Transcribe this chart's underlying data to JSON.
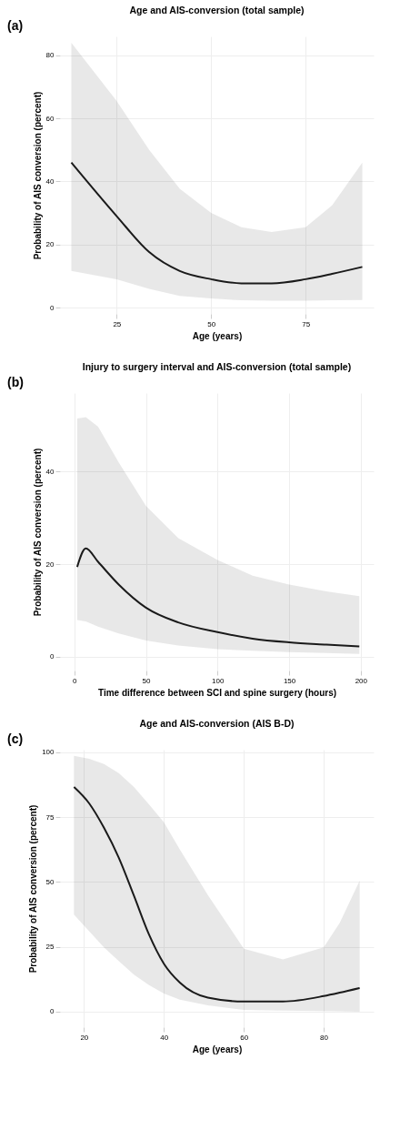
{
  "chart_data": [
    {
      "type": "line",
      "title": "Age and AIS-conversion (total sample)",
      "annotations": [
        "(a)"
      ],
      "xlabel": "Age (years)",
      "ylabel": "Probability of AIS conversion (percent)",
      "xlim": [
        10,
        93
      ],
      "xticks": [
        25,
        50,
        75
      ],
      "ylim": [
        -2,
        86
      ],
      "yticks": [
        0,
        20,
        40,
        60,
        80
      ],
      "grid": true,
      "series": [
        {
          "color": "#1a1a1a",
          "x": [
            13,
            25,
            33.6,
            41.7,
            50,
            58,
            66,
            75,
            82,
            90
          ],
          "values": [
            46,
            29,
            17.6,
            11.6,
            9,
            7.7,
            7.7,
            9,
            10.7,
            12.9
          ],
          "lower": [
            11.6,
            9,
            5.9,
            3.7,
            2.9,
            2.3,
            2.2,
            2.2,
            2.3,
            2.4
          ],
          "upper": [
            84,
            65.5,
            50,
            37.7,
            30,
            25.5,
            24,
            25.5,
            32.4,
            46
          ]
        }
      ]
    },
    {
      "type": "line",
      "title": "Injury to surgery interval and AIS-conversion (total sample)",
      "annotations": [
        "(b)"
      ],
      "xlabel": "Time difference between SCI and spine surgery (hours)",
      "ylabel": "Probability of AIS conversion (percent)",
      "xlim": [
        -10,
        209
      ],
      "xticks": [
        0,
        50,
        100,
        150,
        200
      ],
      "ylim": [
        -3,
        57
      ],
      "yticks": [
        0,
        20,
        40
      ],
      "grid": true,
      "series": [
        {
          "color": "#1a1a1a",
          "x": [
            2,
            8,
            16.6,
            31,
            50,
            72.6,
            100,
            124.5,
            150,
            176,
            199
          ],
          "values": [
            19.4,
            23.4,
            20.5,
            15.6,
            10.6,
            7.4,
            5.3,
            3.9,
            3.1,
            2.6,
            2.2
          ],
          "lower": [
            7.9,
            7.6,
            6.5,
            5,
            3.5,
            2.4,
            1.6,
            1.3,
            1,
            0.8,
            0.6
          ],
          "upper": [
            51.5,
            51.8,
            49.7,
            42,
            32.6,
            25.6,
            20.9,
            17.5,
            15.6,
            14.1,
            13.1
          ]
        }
      ]
    },
    {
      "type": "line",
      "title": "Age and AIS-conversion (AIS B-D)",
      "annotations": [
        "(c)"
      ],
      "xlabel": "Age (years)",
      "ylabel": "Probability of AIS conversion (percent)",
      "xlim": [
        14,
        92.5
      ],
      "xticks": [
        20,
        40,
        60,
        80
      ],
      "ylim": [
        -6,
        101
      ],
      "yticks": [
        0,
        25,
        50,
        75,
        100
      ],
      "grid": true,
      "series": [
        {
          "color": "#1a1a1a",
          "x": [
            17.5,
            21.3,
            25,
            28.7,
            32.5,
            36.2,
            40,
            44,
            51,
            60,
            69.8,
            80,
            84,
            89
          ],
          "values": [
            86.6,
            80.3,
            70.9,
            59.4,
            44.7,
            30,
            18.5,
            11.2,
            5.4,
            3.9,
            3.9,
            6,
            7.3,
            9.1
          ],
          "lower": [
            37.4,
            31,
            24.8,
            19.5,
            14.3,
            10.3,
            7,
            4.6,
            2.4,
            0.7,
            0.4,
            0.2,
            0.1,
            0
          ],
          "upper": [
            98.6,
            97.5,
            95.5,
            92,
            86.6,
            80,
            73,
            62.5,
            45,
            24.3,
            20.1,
            24.8,
            34.2,
            50.5
          ]
        }
      ]
    }
  ]
}
